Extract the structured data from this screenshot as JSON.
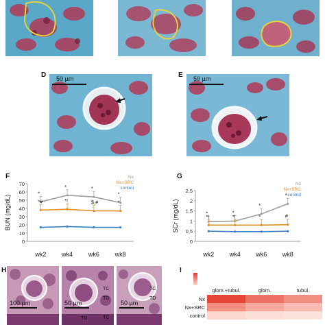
{
  "panels": {
    "D": {
      "label": "D",
      "scale": "50 µm"
    },
    "E": {
      "label": "E",
      "scale": "50 µm"
    },
    "F": {
      "label": "F"
    },
    "G": {
      "label": "G"
    },
    "H": {
      "label": "H",
      "scale_left": "100 µm",
      "scale_mid": "50 µm",
      "scale_right": "50 µm",
      "tags": [
        "TC",
        "TD",
        "TC",
        "TD",
        "TC",
        "TD"
      ]
    },
    "I": {
      "label": "I"
    }
  },
  "chart_data": [
    {
      "type": "line",
      "panel": "F",
      "categories": [
        "wk2",
        "wk4",
        "wk6",
        "wk8"
      ],
      "ylabel": "BUN (mg/dL)",
      "ylim": [
        0,
        70
      ],
      "yticks": [
        "0",
        "10",
        "20",
        "30",
        "40",
        "50",
        "60",
        "70"
      ],
      "series": [
        {
          "name": "Nx",
          "color": "#9e9e9e",
          "values": [
            48,
            56,
            54,
            47
          ]
        },
        {
          "name": "Nx+SRC",
          "color": "#e0902a",
          "values": [
            38,
            39,
            37,
            37
          ]
        },
        {
          "name": "control",
          "color": "#3b7fc4",
          "values": [
            17,
            18,
            17,
            17
          ]
        }
      ],
      "annotations": [
        "*",
        "*",
        "*",
        "*",
        "*#",
        "*!",
        "$,#",
        "*"
      ]
    },
    {
      "type": "line",
      "panel": "G",
      "categories": [
        "wk2",
        "wk4",
        "wk6",
        "wk8"
      ],
      "ylabel": "SCr (mg/dL)",
      "ylim": [
        0,
        2.5
      ],
      "yticks": [
        "0",
        "0.5",
        "1",
        "1.5",
        "2",
        "2.5"
      ],
      "series": [
        {
          "name": "Nx",
          "color": "#9e9e9e",
          "values": [
            0.97,
            1.0,
            1.35,
            1.85
          ]
        },
        {
          "name": "Nx+SRC",
          "color": "#e0902a",
          "values": [
            0.8,
            0.8,
            0.8,
            0.82
          ]
        },
        {
          "name": "control",
          "color": "#3b7fc4",
          "values": [
            0.5,
            0.48,
            0.48,
            0.5
          ]
        }
      ],
      "annotations": [
        "*",
        "*",
        "*",
        "*",
        "*!",
        "*!",
        "*",
        "#"
      ]
    },
    {
      "type": "heatmap",
      "panel": "I",
      "columns": [
        "glom.+tubul.",
        "glom.",
        "tubul."
      ],
      "rows": [
        "Nx",
        "Nx+SRC",
        "control"
      ],
      "values": [
        [
          0.95,
          0.7,
          0.55
        ],
        [
          0.55,
          0.4,
          0.3
        ],
        [
          0.15,
          0.1,
          0.08
        ]
      ]
    }
  ]
}
